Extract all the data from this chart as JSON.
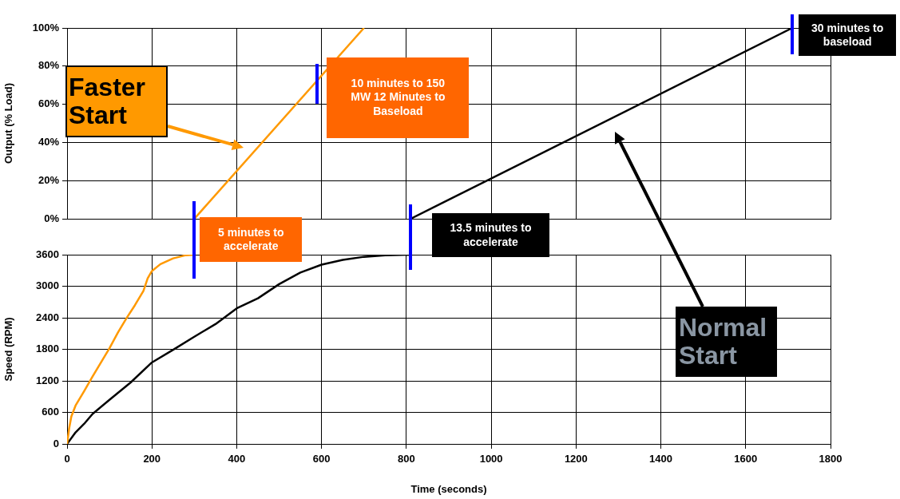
{
  "chart_data": [
    {
      "type": "line",
      "ylabel": "Output (% Load)",
      "xlim": [
        0,
        1800
      ],
      "xticks": [
        0,
        200,
        400,
        600,
        800,
        1000,
        1200,
        1400,
        1600,
        1800
      ],
      "ylim": [
        0,
        100
      ],
      "yticks": [
        {
          "value": 0,
          "label": "0%"
        },
        {
          "value": 20,
          "label": "20%"
        },
        {
          "value": 40,
          "label": "40%"
        },
        {
          "value": 60,
          "label": "60%"
        },
        {
          "value": 80,
          "label": "80%"
        },
        {
          "value": 100,
          "label": "100%"
        }
      ],
      "grid": true,
      "tick_labels": "y",
      "marker": "none",
      "series": [
        {
          "color": "#ff9900",
          "x": [
            300,
            700
          ],
          "values": [
            0,
            100
          ]
        },
        {
          "color": "#000000",
          "x": [
            810,
            1710
          ],
          "values": [
            0,
            100
          ]
        }
      ],
      "annotations": [
        "Faster Start",
        {
          "text": "10 minutes to 150 MW 12 Minutes to Baseload",
          "x": 590,
          "y": 70
        },
        {
          "text": "30 minutes to baseload",
          "x": 1710,
          "y": 100
        },
        "Normal Start"
      ]
    },
    {
      "type": "line",
      "ylabel": "Speed (RPM)",
      "xlabel": "Time (seconds)",
      "xlim": [
        0,
        1800
      ],
      "xticks": [
        0,
        200,
        400,
        600,
        800,
        1000,
        1200,
        1400,
        1600,
        1800
      ],
      "ylim": [
        0,
        3600
      ],
      "yticks": [
        0,
        600,
        1200,
        1800,
        2400,
        3000,
        3600
      ],
      "grid": true,
      "marker": "none",
      "series": [
        {
          "color": "#ff9900",
          "x": [
            0,
            5,
            10,
            20,
            40,
            60,
            80,
            100,
            120,
            140,
            160,
            180,
            190,
            200,
            220,
            250,
            280,
            300
          ],
          "values": [
            0,
            300,
            520,
            730,
            1000,
            1280,
            1550,
            1820,
            2120,
            2390,
            2640,
            2910,
            3150,
            3290,
            3420,
            3530,
            3590,
            3600
          ]
        },
        {
          "color": "#000000",
          "x": [
            0,
            20,
            40,
            60,
            100,
            150,
            200,
            250,
            300,
            350,
            400,
            450,
            500,
            550,
            600,
            650,
            700,
            750,
            810
          ],
          "values": [
            0,
            220,
            380,
            570,
            840,
            1170,
            1550,
            1790,
            2040,
            2280,
            2580,
            2770,
            3040,
            3260,
            3410,
            3500,
            3560,
            3590,
            3600
          ]
        }
      ],
      "annotations": [
        {
          "text": "5 minutes to accelerate",
          "x": 300,
          "y": 3600
        },
        "13.5 minutes to accelerate"
      ]
    }
  ]
}
